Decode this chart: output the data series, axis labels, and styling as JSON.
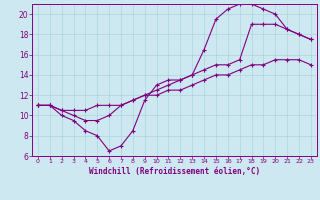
{
  "bg_color": "#cde8f0",
  "line_color": "#800080",
  "grid_color": "#aad4dc",
  "xlabel": "Windchill (Refroidissement éolien,°C)",
  "xlim": [
    -0.5,
    23.5
  ],
  "ylim": [
    6,
    21
  ],
  "yticks": [
    6,
    8,
    10,
    12,
    14,
    16,
    18,
    20
  ],
  "xticks": [
    0,
    1,
    2,
    3,
    4,
    5,
    6,
    7,
    8,
    9,
    10,
    11,
    12,
    13,
    14,
    15,
    16,
    17,
    18,
    19,
    20,
    21,
    22,
    23
  ],
  "curve1_x": [
    0,
    1,
    2,
    3,
    4,
    5,
    6,
    7,
    8,
    9,
    10,
    11,
    12,
    13,
    14,
    15,
    16,
    17,
    18,
    19,
    20,
    21,
    22,
    23
  ],
  "curve1_y": [
    11,
    11,
    10,
    9.5,
    8.5,
    8.0,
    6.5,
    7.0,
    8.5,
    11.5,
    13.0,
    13.5,
    13.5,
    14.0,
    16.5,
    19.5,
    20.5,
    21.0,
    21.0,
    20.5,
    20.0,
    18.5,
    18.0,
    17.5
  ],
  "curve2_x": [
    0,
    1,
    2,
    3,
    4,
    5,
    6,
    7,
    8,
    9,
    10,
    11,
    12,
    13,
    14,
    15,
    16,
    17,
    18,
    19,
    20,
    21,
    22,
    23
  ],
  "curve2_y": [
    11,
    11,
    10.5,
    10.5,
    10.5,
    11.0,
    11.0,
    11.0,
    11.5,
    12.0,
    12.0,
    12.5,
    12.5,
    13.0,
    13.5,
    14.0,
    14.0,
    14.5,
    15.0,
    15.0,
    15.5,
    15.5,
    15.5,
    15.0
  ],
  "curve3_x": [
    0,
    1,
    2,
    3,
    4,
    5,
    6,
    7,
    8,
    9,
    10,
    11,
    12,
    13,
    14,
    15,
    16,
    17,
    18,
    19,
    20,
    21,
    22,
    23
  ],
  "curve3_y": [
    11,
    11,
    10.5,
    10.0,
    9.5,
    9.5,
    10.0,
    11.0,
    11.5,
    12.0,
    12.5,
    13.0,
    13.5,
    14.0,
    14.5,
    15.0,
    15.0,
    15.5,
    19.0,
    19.0,
    19.0,
    18.5,
    18.0,
    17.5
  ]
}
